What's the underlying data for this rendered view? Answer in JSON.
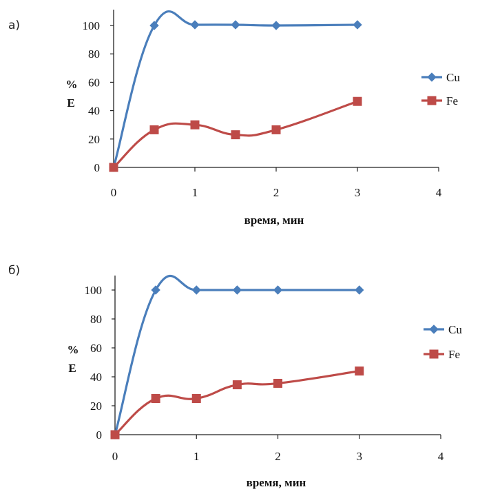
{
  "chart_data": [
    {
      "panel_label": "а)",
      "type": "line",
      "xlabel": "время, мин",
      "ylabel": "%",
      "ylabel2": "E",
      "xlim": [
        0,
        4
      ],
      "ylim": [
        0,
        100
      ],
      "x_ticks": [
        "0",
        "1",
        "2",
        "3",
        "4"
      ],
      "y_ticks": [
        "0",
        "20",
        "40",
        "60",
        "80",
        "100"
      ],
      "grid": false,
      "legend_position": "right",
      "series": [
        {
          "name": "Cu",
          "color": "#4a7ebb",
          "marker": "diamond",
          "x": [
            0,
            0.5,
            1,
            1.5,
            2,
            3
          ],
          "values": [
            0,
            100,
            100.5,
            100.5,
            100,
            100.5
          ]
        },
        {
          "name": "Fe",
          "color": "#be4b48",
          "marker": "square",
          "x": [
            0,
            0.5,
            1,
            1.5,
            2,
            3
          ],
          "values": [
            0,
            26.5,
            30,
            23,
            26.5,
            46.5
          ]
        }
      ]
    },
    {
      "panel_label": "б)",
      "type": "line",
      "xlabel": "время, мин",
      "ylabel": "%",
      "ylabel2": "E",
      "xlim": [
        0,
        4
      ],
      "ylim": [
        0,
        100
      ],
      "x_ticks": [
        "0",
        "1",
        "2",
        "3",
        "4"
      ],
      "y_ticks": [
        "0",
        "20",
        "40",
        "60",
        "80",
        "100"
      ],
      "grid": false,
      "legend_position": "right",
      "series": [
        {
          "name": "Cu",
          "color": "#4a7ebb",
          "marker": "diamond",
          "x": [
            0,
            0.5,
            1,
            1.5,
            2,
            3
          ],
          "values": [
            0,
            100,
            100,
            100,
            100,
            100
          ]
        },
        {
          "name": "Fe",
          "color": "#be4b48",
          "marker": "square",
          "x": [
            0,
            0.5,
            1,
            1.5,
            2,
            3
          ],
          "values": [
            0,
            25,
            25,
            34.5,
            35.5,
            44
          ]
        }
      ]
    }
  ]
}
